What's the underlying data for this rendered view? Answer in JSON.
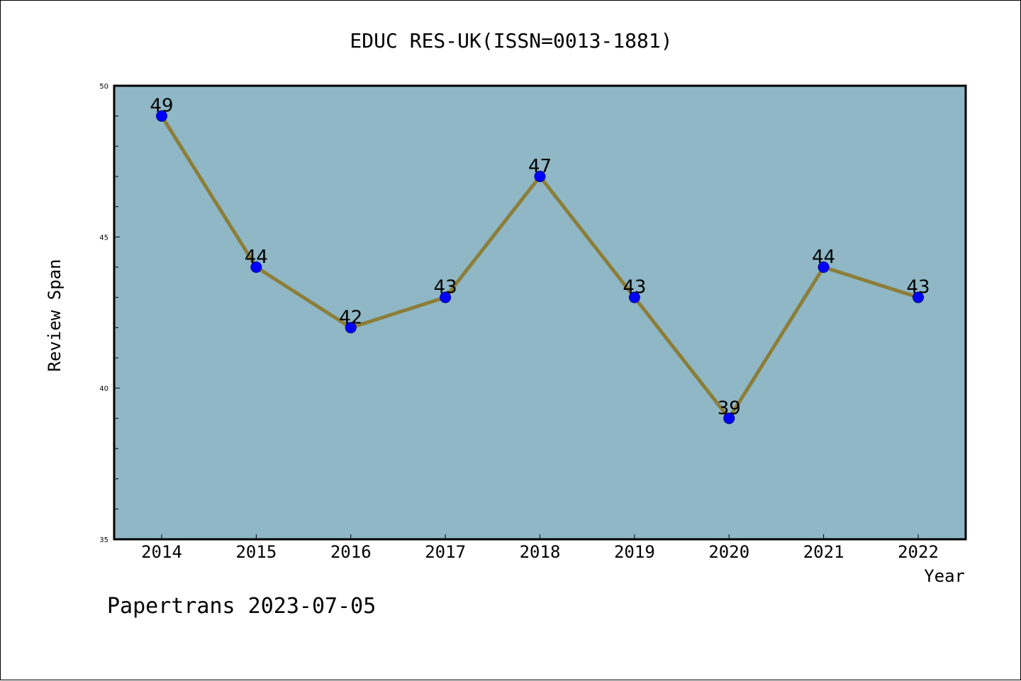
{
  "chart_data": {
    "type": "line",
    "title": "EDUC RES-UK(ISSN=0013-1881)",
    "xlabel": "Year",
    "ylabel": "Review Span",
    "x": [
      "2014",
      "2015",
      "2016",
      "2017",
      "2018",
      "2019",
      "2020",
      "2021",
      "2022"
    ],
    "series": [
      {
        "values": [
          49,
          44,
          42,
          43,
          47,
          43,
          39,
          44,
          43
        ]
      }
    ],
    "ylim": [
      35,
      50
    ],
    "y_major_ticks": [
      35,
      40,
      45,
      50
    ],
    "y_tick_labels": [
      "35",
      "40",
      "45",
      "50"
    ],
    "y_minor_step": 1,
    "data_labels": true,
    "grid": false,
    "legend": "none"
  },
  "footer": {
    "text": "Papertrans 2023-07-05"
  },
  "colors": {
    "plot_background": "#8fb7c5",
    "line": "#8c7e38",
    "marker_fill": "#0000ff",
    "marker_edge": "#00008b",
    "axis": "#000000"
  }
}
